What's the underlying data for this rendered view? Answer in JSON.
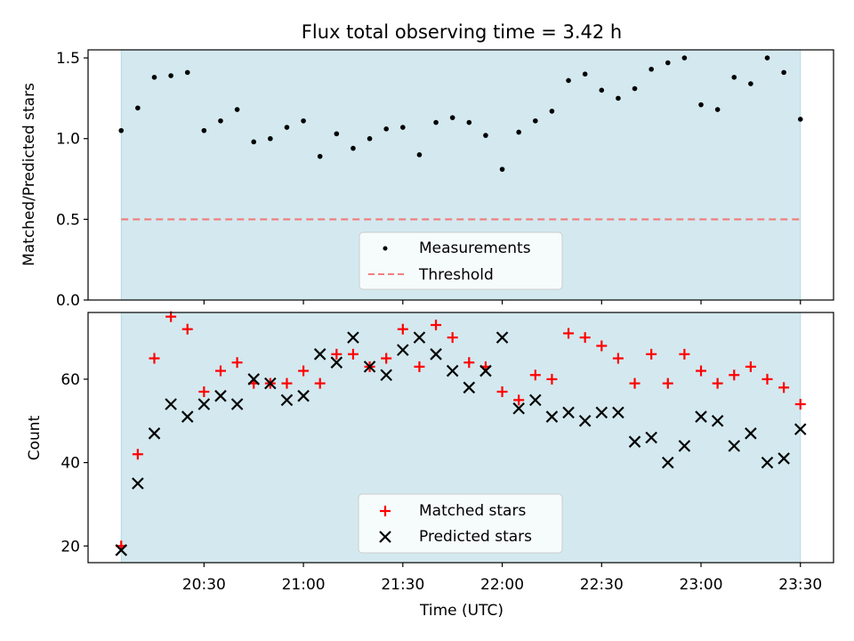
{
  "chart_data": [
    {
      "type": "scatter",
      "title": "Flux total observing time = 3.42 h",
      "xlabel": "",
      "ylabel": "Matched/Predicted stars",
      "ylim": [
        0,
        1.55
      ],
      "yticks": [
        "0.0",
        "0.5",
        "1.0",
        "1.5"
      ],
      "ytick_values": [
        0,
        0.5,
        1.0,
        1.5
      ],
      "xlim_minutes_utc": [
        1195,
        1420
      ],
      "shaded_span_minutes_utc": [
        1205,
        1410
      ],
      "threshold": 0.5,
      "legend_position": "lower center",
      "colors": {
        "shade": "#d3e9ef",
        "points": "#000000",
        "threshold": "#f08080"
      },
      "series": [
        {
          "name": "Measurements",
          "x_minutes_utc": [
            1205,
            1210,
            1215,
            1220,
            1225,
            1230,
            1235,
            1240,
            1245,
            1250,
            1255,
            1260,
            1265,
            1270,
            1275,
            1280,
            1285,
            1290,
            1295,
            1300,
            1305,
            1310,
            1315,
            1320,
            1325,
            1330,
            1335,
            1340,
            1345,
            1350,
            1355,
            1360,
            1365,
            1370,
            1375,
            1380,
            1385,
            1390,
            1395,
            1400,
            1405,
            1410
          ],
          "y": [
            1.05,
            1.19,
            1.38,
            1.39,
            1.41,
            1.05,
            1.11,
            1.18,
            0.98,
            1.0,
            1.07,
            1.11,
            0.89,
            1.03,
            0.94,
            1.0,
            1.06,
            1.07,
            0.9,
            1.1,
            1.13,
            1.1,
            1.02,
            0.81,
            1.04,
            1.11,
            1.17,
            1.36,
            1.4,
            1.3,
            1.25,
            1.31,
            1.43,
            1.47,
            1.5,
            1.21,
            1.18,
            1.38,
            1.34,
            1.5,
            1.41,
            1.12
          ]
        },
        {
          "name": "Threshold",
          "value": 0.5
        }
      ]
    },
    {
      "type": "scatter",
      "title": "",
      "xlabel": "Time (UTC)",
      "ylabel": "Count",
      "ylim": [
        16,
        76
      ],
      "yticks": [
        "20",
        "40",
        "60"
      ],
      "ytick_values": [
        20,
        40,
        60
      ],
      "xticks": [
        "20:30",
        "21:00",
        "21:30",
        "22:00",
        "22:30",
        "23:00",
        "23:30"
      ],
      "xtick_values_minutes_utc": [
        1230,
        1260,
        1290,
        1320,
        1350,
        1380,
        1410
      ],
      "xlim_minutes_utc": [
        1195,
        1420
      ],
      "shaded_span_minutes_utc": [
        1205,
        1410
      ],
      "legend_position": "lower center",
      "colors": {
        "shade": "#d3e9ef",
        "matched": "#ff0000",
        "predicted": "#000000"
      },
      "series": [
        {
          "name": "Matched stars",
          "x_minutes_utc": [
            1205,
            1210,
            1215,
            1220,
            1225,
            1230,
            1235,
            1240,
            1245,
            1250,
            1255,
            1260,
            1265,
            1270,
            1275,
            1280,
            1285,
            1290,
            1295,
            1300,
            1305,
            1310,
            1315,
            1320,
            1325,
            1330,
            1335,
            1340,
            1345,
            1350,
            1355,
            1360,
            1365,
            1370,
            1375,
            1380,
            1385,
            1390,
            1395,
            1400,
            1405,
            1410
          ],
          "y": [
            20,
            42,
            65,
            75,
            72,
            57,
            62,
            64,
            59,
            59,
            59,
            62,
            59,
            66,
            66,
            63,
            65,
            72,
            63,
            73,
            70,
            64,
            63,
            57,
            55,
            61,
            60,
            71,
            70,
            68,
            65,
            59,
            66,
            59,
            66,
            62,
            59,
            61,
            63,
            60,
            58,
            54
          ]
        },
        {
          "name": "Predicted stars",
          "x_minutes_utc": [
            1205,
            1210,
            1215,
            1220,
            1225,
            1230,
            1235,
            1240,
            1245,
            1250,
            1255,
            1260,
            1265,
            1270,
            1275,
            1280,
            1285,
            1290,
            1295,
            1300,
            1305,
            1310,
            1315,
            1320,
            1325,
            1330,
            1335,
            1340,
            1345,
            1350,
            1355,
            1360,
            1365,
            1370,
            1375,
            1380,
            1385,
            1390,
            1395,
            1400,
            1405,
            1410
          ],
          "y": [
            19,
            35,
            47,
            54,
            51,
            54,
            56,
            54,
            60,
            59,
            55,
            56,
            66,
            64,
            70,
            63,
            61,
            67,
            70,
            66,
            62,
            58,
            62,
            70,
            53,
            55,
            51,
            52,
            50,
            52,
            52,
            45,
            46,
            40,
            44,
            51,
            50,
            44,
            47,
            40,
            41,
            48
          ]
        }
      ]
    }
  ]
}
